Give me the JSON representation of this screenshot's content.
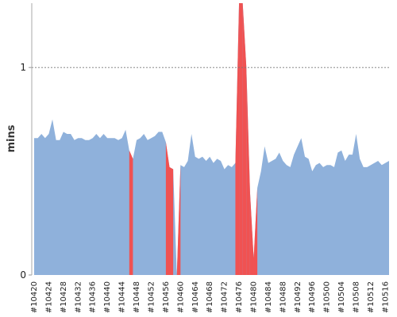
{
  "chart_data": {
    "type": "area",
    "y_label": "mins",
    "categories": [
      "#10420",
      null,
      null,
      null,
      "#10424",
      null,
      null,
      null,
      "#10428",
      null,
      null,
      null,
      "#10432",
      null,
      null,
      null,
      "#10436",
      null,
      null,
      null,
      "#10440",
      null,
      null,
      null,
      "#10444",
      null,
      null,
      null,
      "#10448",
      null,
      null,
      null,
      "#10452",
      null,
      null,
      null,
      "#10456",
      null,
      null,
      null,
      "#10460",
      null,
      null,
      null,
      "#10464",
      null,
      null,
      null,
      "#10468",
      null,
      null,
      null,
      "#10472",
      null,
      null,
      null,
      "#10476",
      null,
      null,
      null,
      "#10480",
      null,
      null,
      null,
      "#10484",
      null,
      null,
      null,
      "#10488",
      null,
      null,
      null,
      "#10492",
      null,
      null,
      null,
      "#10496",
      null,
      null,
      null,
      "#10500",
      null,
      null,
      null,
      "#10504",
      null,
      null,
      null,
      "#10508",
      null,
      null,
      null,
      "#10512",
      null,
      null,
      null,
      "#10516",
      null
    ],
    "values": [
      0.66,
      0.66,
      0.68,
      0.66,
      0.68,
      0.75,
      0.65,
      0.65,
      0.69,
      0.68,
      0.68,
      0.65,
      0.66,
      0.66,
      0.65,
      0.65,
      0.66,
      0.68,
      0.66,
      0.68,
      0.66,
      0.66,
      0.66,
      0.65,
      0.66,
      0.7,
      0.6,
      0.56,
      0.65,
      0.66,
      0.68,
      0.65,
      0.66,
      0.67,
      0.69,
      0.69,
      0.64,
      0.52,
      0.51,
      0,
      0.53,
      0.52,
      0.55,
      0.68,
      0.57,
      0.56,
      0.57,
      0.55,
      0.57,
      0.54,
      0.56,
      0.55,
      0.51,
      0.53,
      0.52,
      0.54,
      1.31,
      1.31,
      1.0,
      0.4,
      0.08,
      0.42,
      0.5,
      0.62,
      0.54,
      0.55,
      0.56,
      0.59,
      0.55,
      0.53,
      0.52,
      0.58,
      0.62,
      0.66,
      0.57,
      0.56,
      0.5,
      0.53,
      0.54,
      0.52,
      0.53,
      0.53,
      0.52,
      0.59,
      0.6,
      0.55,
      0.58,
      0.58,
      0.68,
      0.56,
      0.52,
      0.52,
      0.53,
      0.54,
      0.55,
      0.53,
      0.54,
      0.55
    ],
    "color": "#8fb1db",
    "highlight_color": "#f05252",
    "highlight_segments": [
      26,
      36,
      37,
      39,
      55,
      56,
      57,
      58,
      59,
      60
    ],
    "ylim": [
      0,
      1.31
    ],
    "yticks": [
      0,
      1
    ],
    "grid": true
  }
}
